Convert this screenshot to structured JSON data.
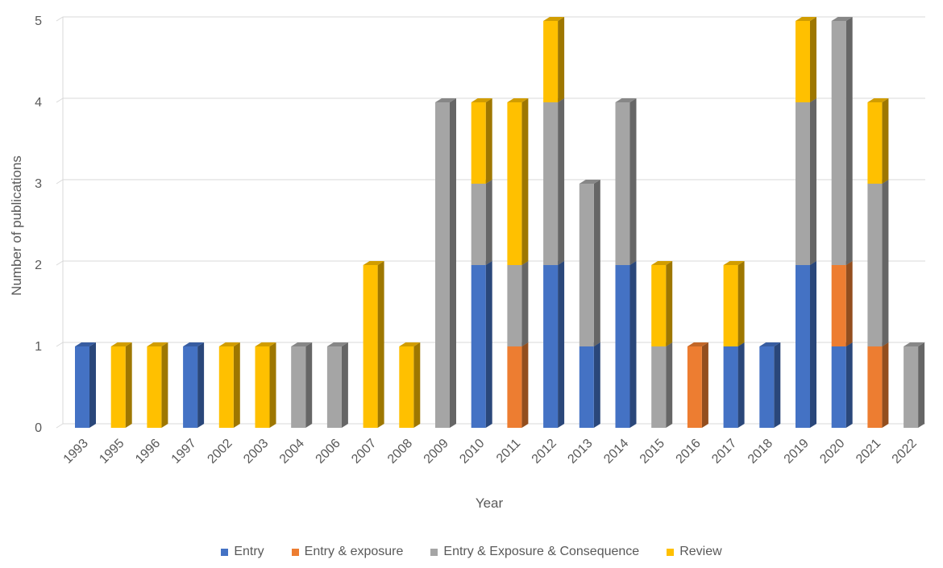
{
  "chart_data": {
    "type": "bar",
    "stacked": true,
    "title": "",
    "xlabel": "Year",
    "ylabel": "Number of publications",
    "ylim": [
      0,
      5
    ],
    "yticks": [
      0,
      1,
      2,
      3,
      4,
      5
    ],
    "grid": true,
    "legend_position": "bottom",
    "categories": [
      "1993",
      "1995",
      "1996",
      "1997",
      "2002",
      "2003",
      "2004",
      "2006",
      "2007",
      "2008",
      "2009",
      "2010",
      "2011",
      "2012",
      "2013",
      "2014",
      "2015",
      "2016",
      "2017",
      "2018",
      "2019",
      "2020",
      "2021",
      "2022"
    ],
    "series": [
      {
        "name": "Entry",
        "color": "#4472C4",
        "values": [
          1,
          0,
          0,
          1,
          0,
          0,
          0,
          0,
          0,
          0,
          0,
          2,
          0,
          2,
          1,
          2,
          0,
          0,
          1,
          1,
          2,
          1,
          0,
          0
        ]
      },
      {
        "name": "Entry & exposure",
        "color": "#ED7D31",
        "values": [
          0,
          0,
          0,
          0,
          0,
          0,
          0,
          0,
          0,
          0,
          0,
          0,
          1,
          0,
          0,
          0,
          0,
          1,
          0,
          0,
          0,
          1,
          1,
          0
        ]
      },
      {
        "name": "Entry & Exposure & Consequence",
        "color": "#A5A5A5",
        "values": [
          0,
          0,
          0,
          0,
          0,
          0,
          1,
          1,
          0,
          0,
          4,
          1,
          1,
          2,
          2,
          2,
          1,
          0,
          0,
          0,
          2,
          3,
          2,
          1
        ]
      },
      {
        "name": "Review",
        "color": "#FFC000",
        "values": [
          0,
          1,
          1,
          0,
          1,
          1,
          0,
          0,
          2,
          1,
          0,
          1,
          2,
          1,
          0,
          0,
          1,
          0,
          1,
          0,
          1,
          0,
          1,
          0
        ]
      }
    ]
  }
}
